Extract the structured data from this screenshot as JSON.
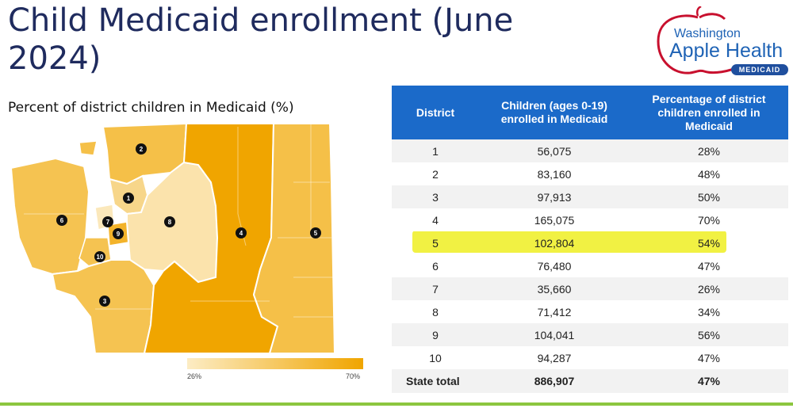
{
  "title": "Child Medicaid enrollment (June 2024)",
  "logo": {
    "line1": "Washington",
    "line2": "Apple Health",
    "badge": "MEDICAID"
  },
  "map": {
    "title": "Percent of district children in Medicaid (%)",
    "legend_min": "26%",
    "legend_max": "70%",
    "colors": {
      "low": "#fcecc4",
      "high": "#f0a500"
    },
    "district_labels": [
      "1",
      "2",
      "3",
      "4",
      "5",
      "6",
      "7",
      "8",
      "9",
      "10"
    ]
  },
  "table": {
    "headers": [
      "District",
      "Children (ages 0-19) enrolled in Medicaid",
      "Percentage of district children enrolled in Medicaid"
    ],
    "rows": [
      {
        "district": "1",
        "children": "56,075",
        "pct": "28%"
      },
      {
        "district": "2",
        "children": "83,160",
        "pct": "48%"
      },
      {
        "district": "3",
        "children": "97,913",
        "pct": "50%"
      },
      {
        "district": "4",
        "children": "165,075",
        "pct": "70%"
      },
      {
        "district": "5",
        "children": "102,804",
        "pct": "54%"
      },
      {
        "district": "6",
        "children": "76,480",
        "pct": "47%"
      },
      {
        "district": "7",
        "children": "35,660",
        "pct": "26%"
      },
      {
        "district": "8",
        "children": "71,412",
        "pct": "34%"
      },
      {
        "district": "9",
        "children": "104,041",
        "pct": "56%"
      },
      {
        "district": "10",
        "children": "94,287",
        "pct": "47%"
      }
    ],
    "total": {
      "label": "State total",
      "children": "886,907",
      "pct": "47%"
    },
    "highlight_color": "#eeee22",
    "header_color": "#1b6ac9"
  }
}
